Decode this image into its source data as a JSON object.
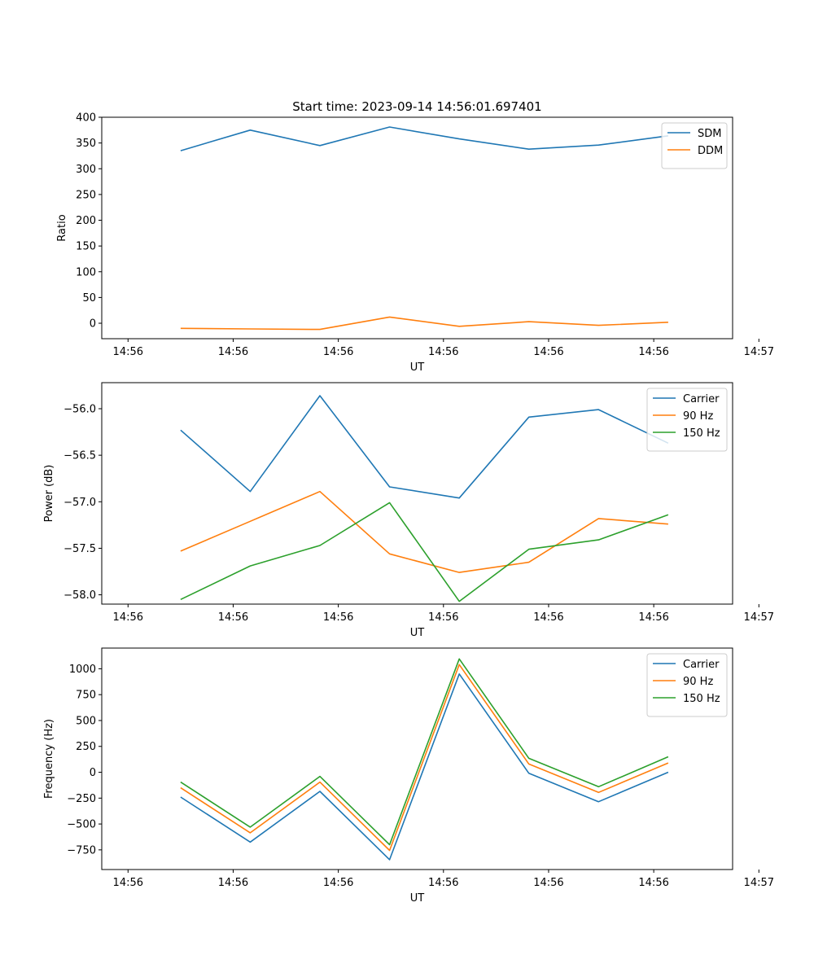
{
  "chart_data": [
    {
      "type": "line",
      "title": "Start time: 2023-09-14 14:56:01.697401",
      "xlabel": "UT",
      "ylabel": "Ratio",
      "xlim": [
        -0.2,
        4.6
      ],
      "xticks": [
        0,
        0.8,
        1.6,
        2.4,
        3.2,
        4.0,
        4.8
      ],
      "xtick_labels": [
        "14:56",
        "14:56",
        "14:56",
        "14:56",
        "14:56",
        "14:56",
        "14:57"
      ],
      "ylim": [
        -30,
        400
      ],
      "yticks": [
        0,
        50,
        100,
        150,
        200,
        250,
        300,
        350,
        400
      ],
      "ytick_labels": [
        "0",
        "50",
        "100",
        "150",
        "200",
        "250",
        "300",
        "350",
        "400"
      ],
      "x": [
        0.4,
        0.93,
        1.46,
        1.99,
        2.52,
        3.05,
        3.58,
        4.11
      ],
      "legend_position": "top-right",
      "series": [
        {
          "name": "SDM",
          "color": "#1f77b4",
          "values": [
            335,
            375,
            345,
            381,
            358,
            338,
            346,
            364
          ]
        },
        {
          "name": "DDM",
          "color": "#ff7f0e",
          "values": [
            -10,
            -11,
            -12,
            12,
            -6,
            3,
            -4,
            2
          ]
        }
      ]
    },
    {
      "type": "line",
      "title": "",
      "xlabel": "UT",
      "ylabel": "Power (dB)",
      "xlim": [
        -0.2,
        4.6
      ],
      "xticks": [
        0,
        0.8,
        1.6,
        2.4,
        3.2,
        4.0,
        4.8
      ],
      "xtick_labels": [
        "14:56",
        "14:56",
        "14:56",
        "14:56",
        "14:56",
        "14:56",
        "14:57"
      ],
      "ylim": [
        -58.1,
        -55.72
      ],
      "yticks": [
        -58.0,
        -57.5,
        -57.0,
        -56.5,
        -56.0
      ],
      "ytick_labels": [
        "−58.0",
        "−57.5",
        "−57.0",
        "−56.5",
        "−56.0"
      ],
      "x": [
        0.4,
        0.93,
        1.46,
        1.99,
        2.52,
        3.05,
        3.58,
        4.11
      ],
      "legend_position": "top-right",
      "series": [
        {
          "name": "Carrier",
          "color": "#1f77b4",
          "values": [
            -56.23,
            -56.89,
            -55.86,
            -56.84,
            -56.96,
            -56.09,
            -56.01,
            -56.37
          ]
        },
        {
          "name": "90 Hz",
          "color": "#ff7f0e",
          "values": [
            -57.53,
            -57.21,
            -56.89,
            -57.56,
            -57.76,
            -57.65,
            -57.18,
            -57.24
          ]
        },
        {
          "name": "150 Hz",
          "color": "#2ca02c",
          "values": [
            -58.05,
            -57.69,
            -57.47,
            -57.01,
            -58.07,
            -57.51,
            -57.41,
            -57.14
          ]
        }
      ]
    },
    {
      "type": "line",
      "title": "",
      "xlabel": "UT",
      "ylabel": "Frequency (Hz)",
      "xlim": [
        -0.2,
        4.6
      ],
      "xticks": [
        0,
        0.8,
        1.6,
        2.4,
        3.2,
        4.0,
        4.8
      ],
      "xtick_labels": [
        "14:56",
        "14:56",
        "14:56",
        "14:56",
        "14:56",
        "14:56",
        "14:57"
      ],
      "ylim": [
        -940,
        1200
      ],
      "yticks": [
        -750,
        -500,
        -250,
        0,
        250,
        500,
        750,
        1000
      ],
      "ytick_labels": [
        "−750",
        "−500",
        "−250",
        "0",
        "250",
        "500",
        "750",
        "1000"
      ],
      "x": [
        0.4,
        0.93,
        1.46,
        1.99,
        2.52,
        3.05,
        3.58,
        4.11
      ],
      "legend_position": "top-right",
      "series": [
        {
          "name": "Carrier",
          "color": "#1f77b4",
          "values": [
            -240,
            -675,
            -185,
            -845,
            950,
            -10,
            -285,
            0
          ]
        },
        {
          "name": "90 Hz",
          "color": "#ff7f0e",
          "values": [
            -150,
            -585,
            -95,
            -755,
            1040,
            80,
            -195,
            90
          ]
        },
        {
          "name": "150 Hz",
          "color": "#2ca02c",
          "values": [
            -95,
            -530,
            -40,
            -700,
            1095,
            135,
            -140,
            150
          ]
        }
      ]
    }
  ]
}
